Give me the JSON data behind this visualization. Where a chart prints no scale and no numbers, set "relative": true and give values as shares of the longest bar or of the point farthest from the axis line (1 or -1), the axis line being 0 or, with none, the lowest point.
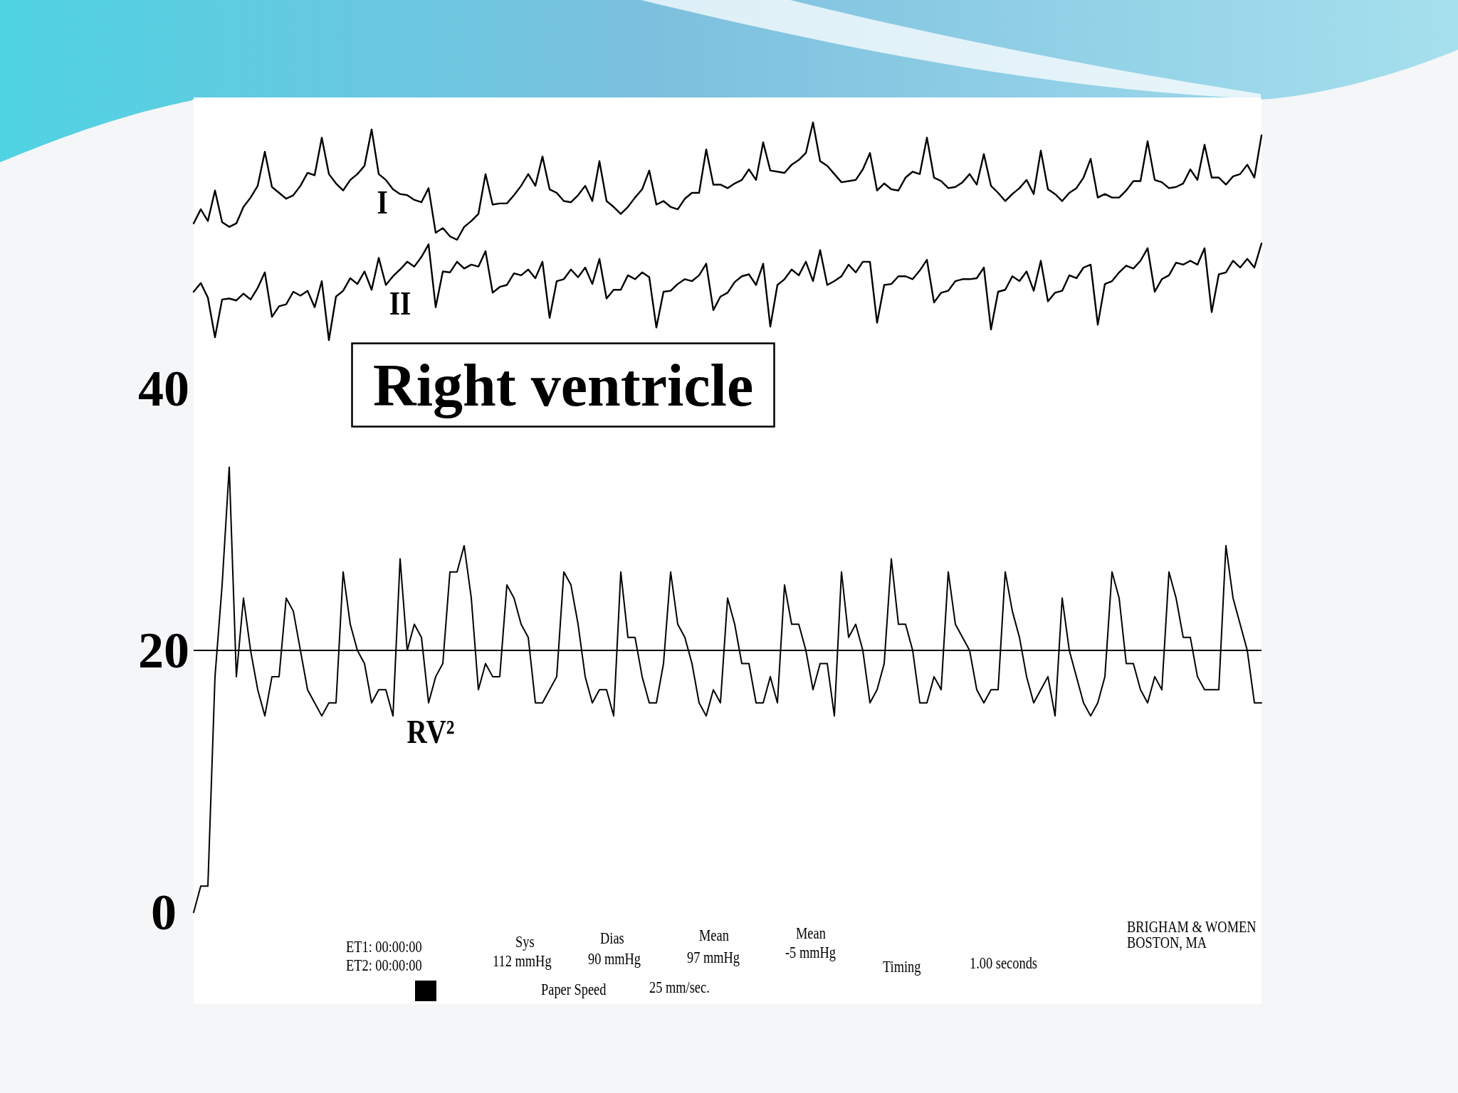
{
  "chart_data": [
    {
      "type": "line",
      "categories": [
        null,
        null,
        null,
        null,
        null,
        null,
        null,
        null,
        null,
        null,
        null,
        null,
        null,
        null,
        null,
        null,
        null,
        null,
        null,
        null,
        null,
        null,
        null,
        null,
        null,
        null,
        null,
        null,
        null,
        null,
        null,
        null,
        null,
        null,
        null,
        null,
        null,
        null,
        null,
        null,
        null,
        null,
        null,
        null,
        null,
        null,
        null,
        null,
        null,
        null,
        null,
        null,
        null,
        null,
        null,
        null,
        null,
        null,
        null,
        null,
        null,
        null,
        null,
        null,
        null,
        null,
        null,
        null,
        null,
        null,
        null,
        null,
        null,
        null,
        null,
        null,
        null,
        null,
        null,
        null,
        null,
        null,
        null,
        null,
        null,
        null,
        null,
        null,
        null,
        null,
        null,
        null,
        null,
        null,
        null,
        null,
        null,
        null,
        null,
        null,
        null,
        null,
        null,
        null,
        null,
        null,
        null,
        null,
        null,
        null,
        null,
        null,
        null,
        null,
        null,
        null,
        null,
        null,
        null,
        null,
        null,
        null,
        null,
        null,
        null,
        null,
        null,
        null,
        null,
        null,
        null,
        null,
        null,
        null,
        null,
        null,
        null,
        null,
        null,
        null,
        null,
        null,
        null,
        null,
        null,
        null,
        null,
        null,
        null,
        null,
        null
      ],
      "series": [
        {
          "name": "I",
          "color": "#000000",
          "values": [
            0.14,
            0.26,
            0.16,
            0.42,
            0.15,
            0.11,
            0.14,
            0.28,
            0.36,
            0.46,
            0.75,
            0.45,
            0.4,
            0.35,
            0.38,
            0.46,
            0.57,
            0.55,
            0.87,
            0.56,
            0.48,
            0.42,
            0.51,
            0.56,
            0.63,
            0.94,
            0.56,
            0.51,
            0.43,
            0.39,
            0.38,
            0.34,
            0.32,
            0.44,
            0.06,
            0.1,
            0.03,
            0,
            0.11,
            0.16,
            0.22,
            0.56,
            0.3,
            0.31,
            0.31,
            0.38,
            0.46,
            0.56,
            0.46,
            0.71,
            0.43,
            0.4,
            0.33,
            0.32,
            0.38,
            0.46,
            0.33,
            0.67,
            0.33,
            0.28,
            0.22,
            0.28,
            0.36,
            0.43,
            0.59,
            0.3,
            0.33,
            0.28,
            0.26,
            0.35,
            0.4,
            0.4,
            0.77,
            0.47,
            0.47,
            0.44,
            0.48,
            0.51,
            0.6,
            0.51,
            0.83,
            0.59,
            0.58,
            0.57,
            0.64,
            0.68,
            0.74,
            1,
            0.67,
            0.63,
            0.56,
            0.49,
            0.5,
            0.51,
            0.6,
            0.74,
            0.42,
            0.48,
            0.43,
            0.42,
            0.53,
            0.58,
            0.56,
            0.87,
            0.53,
            0.5,
            0.44,
            0.45,
            0.49,
            0.56,
            0.47,
            0.73,
            0.46,
            0.4,
            0.33,
            0.39,
            0.44,
            0.51,
            0.39,
            0.76,
            0.43,
            0.39,
            0.33,
            0.4,
            0.44,
            0.53,
            0.69,
            0.36,
            0.39,
            0.36,
            0.36,
            0.42,
            0.5,
            0.5,
            0.84,
            0.51,
            0.49,
            0.44,
            0.45,
            0.48,
            0.6,
            0.51,
            0.81,
            0.53,
            0.53,
            0.47,
            0.54,
            0.56,
            0.64,
            0.53,
            0.89
          ]
        }
      ],
      "relative": true,
      "tick_labels": false,
      "marker": "none"
    },
    {
      "type": "line",
      "categories": [
        null,
        null,
        null,
        null,
        null,
        null,
        null,
        null,
        null,
        null,
        null,
        null,
        null,
        null,
        null,
        null,
        null,
        null,
        null,
        null,
        null,
        null,
        null,
        null,
        null,
        null,
        null,
        null,
        null,
        null,
        null,
        null,
        null,
        null,
        null,
        null,
        null,
        null,
        null,
        null,
        null,
        null,
        null,
        null,
        null,
        null,
        null,
        null,
        null,
        null,
        null,
        null,
        null,
        null,
        null,
        null,
        null,
        null,
        null,
        null,
        null,
        null,
        null,
        null,
        null,
        null,
        null,
        null,
        null,
        null,
        null,
        null,
        null,
        null,
        null,
        null,
        null,
        null,
        null,
        null,
        null,
        null,
        null,
        null,
        null,
        null,
        null,
        null,
        null,
        null,
        null,
        null,
        null,
        null,
        null,
        null,
        null,
        null,
        null,
        null,
        null,
        null,
        null,
        null,
        null,
        null,
        null,
        null,
        null,
        null,
        null,
        null,
        null,
        null,
        null,
        null,
        null,
        null,
        null,
        null,
        null,
        null,
        null,
        null,
        null,
        null,
        null,
        null,
        null,
        null,
        null,
        null,
        null,
        null,
        null,
        null,
        null,
        null,
        null,
        null,
        null,
        null,
        null,
        null,
        null,
        null,
        null,
        null,
        null,
        null,
        null
      ],
      "series": [
        {
          "name": "II",
          "color": "#000000",
          "values": [
            0.5,
            0.59,
            0.44,
            0.03,
            0.42,
            0.43,
            0.41,
            0.48,
            0.42,
            0.54,
            0.7,
            0.24,
            0.35,
            0.37,
            0.5,
            0.46,
            0.51,
            0.34,
            0.61,
            0,
            0.45,
            0.51,
            0.64,
            0.58,
            0.71,
            0.52,
            0.85,
            0.57,
            0.66,
            0.73,
            0.81,
            0.76,
            0.86,
            0.99,
            0.34,
            0.71,
            0.7,
            0.81,
            0.74,
            0.78,
            0.76,
            0.92,
            0.49,
            0.55,
            0.57,
            0.69,
            0.67,
            0.73,
            0.64,
            0.81,
            0.23,
            0.61,
            0.63,
            0.73,
            0.65,
            0.75,
            0.58,
            0.84,
            0.43,
            0.52,
            0.52,
            0.67,
            0.63,
            0.7,
            0.65,
            0.13,
            0.5,
            0.51,
            0.58,
            0.63,
            0.61,
            0.67,
            0.79,
            0.31,
            0.45,
            0.49,
            0.6,
            0.66,
            0.68,
            0.57,
            0.79,
            0.14,
            0.57,
            0.63,
            0.73,
            0.67,
            0.81,
            0.61,
            0.93,
            0.57,
            0.61,
            0.66,
            0.78,
            0.7,
            0.81,
            0.81,
            0.18,
            0.57,
            0.58,
            0.66,
            0.66,
            0.63,
            0.72,
            0.83,
            0.39,
            0.49,
            0.51,
            0.61,
            0.63,
            0.63,
            0.64,
            0.75,
            0.11,
            0.5,
            0.52,
            0.66,
            0.61,
            0.71,
            0.51,
            0.82,
            0.4,
            0.49,
            0.51,
            0.67,
            0.64,
            0.75,
            0.78,
            0.16,
            0.58,
            0.61,
            0.7,
            0.77,
            0.74,
            0.82,
            0.95,
            0.5,
            0.63,
            0.67,
            0.8,
            0.78,
            0.82,
            0.78,
            0.95,
            0.29,
            0.68,
            0.7,
            0.82,
            0.75,
            0.84,
            0.75,
            1
          ]
        }
      ],
      "relative": true,
      "tick_labels": false,
      "marker": "none"
    },
    {
      "type": "line",
      "title": "Right ventricle",
      "categories": [
        null,
        null,
        null,
        null,
        null,
        null,
        null,
        null,
        null,
        null,
        null,
        null,
        null,
        null,
        null,
        null,
        null,
        null,
        null,
        null,
        null,
        null,
        null,
        null,
        null,
        null,
        null,
        null,
        null,
        null,
        null,
        null,
        null,
        null,
        null,
        null,
        null,
        null,
        null,
        null,
        null,
        null,
        null,
        null,
        null,
        null,
        null,
        null,
        null,
        null,
        null,
        null,
        null,
        null,
        null,
        null,
        null,
        null,
        null,
        null,
        null,
        null,
        null,
        null,
        null,
        null,
        null,
        null,
        null,
        null,
        null,
        null,
        null,
        null,
        null,
        null,
        null,
        null,
        null,
        null,
        null,
        null,
        null,
        null,
        null,
        null,
        null,
        null,
        null,
        null,
        null,
        null,
        null,
        null,
        null,
        null,
        null,
        null,
        null,
        null,
        null,
        null,
        null,
        null,
        null,
        null,
        null,
        null,
        null,
        null,
        null,
        null,
        null,
        null,
        null,
        null,
        null,
        null,
        null,
        null,
        null,
        null,
        null,
        null,
        null,
        null,
        null,
        null,
        null,
        null,
        null,
        null,
        null,
        null,
        null,
        null,
        null,
        null,
        null,
        null,
        null,
        null,
        null,
        null,
        null,
        null,
        null,
        null,
        null,
        null,
        null
      ],
      "series": [
        {
          "name": "RV²",
          "color": "#000000",
          "values": [
            0,
            2,
            2,
            18,
            25,
            34,
            18,
            24,
            20,
            17,
            15,
            18,
            18,
            24,
            23,
            20,
            17,
            16,
            15,
            16,
            16,
            26,
            22,
            20,
            19,
            16,
            17,
            17,
            15,
            27,
            20,
            22,
            21,
            16,
            18,
            19,
            26,
            26,
            28,
            24,
            17,
            19,
            18,
            18,
            25,
            24,
            22,
            21,
            16,
            16,
            17,
            18,
            26,
            25,
            22,
            18,
            16,
            17,
            17,
            15,
            26,
            21,
            21,
            18,
            16,
            16,
            19,
            26,
            22,
            21,
            19,
            16,
            15,
            17,
            16,
            24,
            22,
            19,
            19,
            16,
            16,
            18,
            16,
            25,
            22,
            22,
            20,
            17,
            19,
            19,
            15,
            26,
            21,
            22,
            20,
            16,
            17,
            19,
            27,
            22,
            22,
            20,
            16,
            16,
            18,
            17,
            26,
            22,
            21,
            20,
            17,
            16,
            17,
            17,
            26,
            23,
            21,
            18,
            16,
            17,
            18,
            15,
            24,
            20,
            18,
            16,
            15,
            16,
            18,
            26,
            24,
            19,
            19,
            17,
            16,
            18,
            17,
            26,
            24,
            21,
            21,
            18,
            17,
            17,
            17,
            28,
            24,
            22,
            20,
            16,
            16
          ]
        }
      ],
      "ylim": [
        -7,
        40
      ],
      "yticks": [
        0,
        20,
        40
      ],
      "tick_labels": "y",
      "marker": "none",
      "ref_lines": [
        {
          "axis": "y",
          "value": 20,
          "color": "#000000"
        }
      ],
      "annotations": [
        "ET1: 00:00:00",
        "ET2: 00:00:00",
        "Sys",
        "112 mmHg",
        "Dias",
        "90 mmHg",
        "Mean",
        "97 mmHg",
        "Mean",
        "-5 mmHg",
        "Timing",
        "1.00 seconds",
        "Paper Speed",
        "25 mm/sec.",
        "BRIGHAM & WOMEN",
        "BOSTON, MA"
      ]
    }
  ]
}
